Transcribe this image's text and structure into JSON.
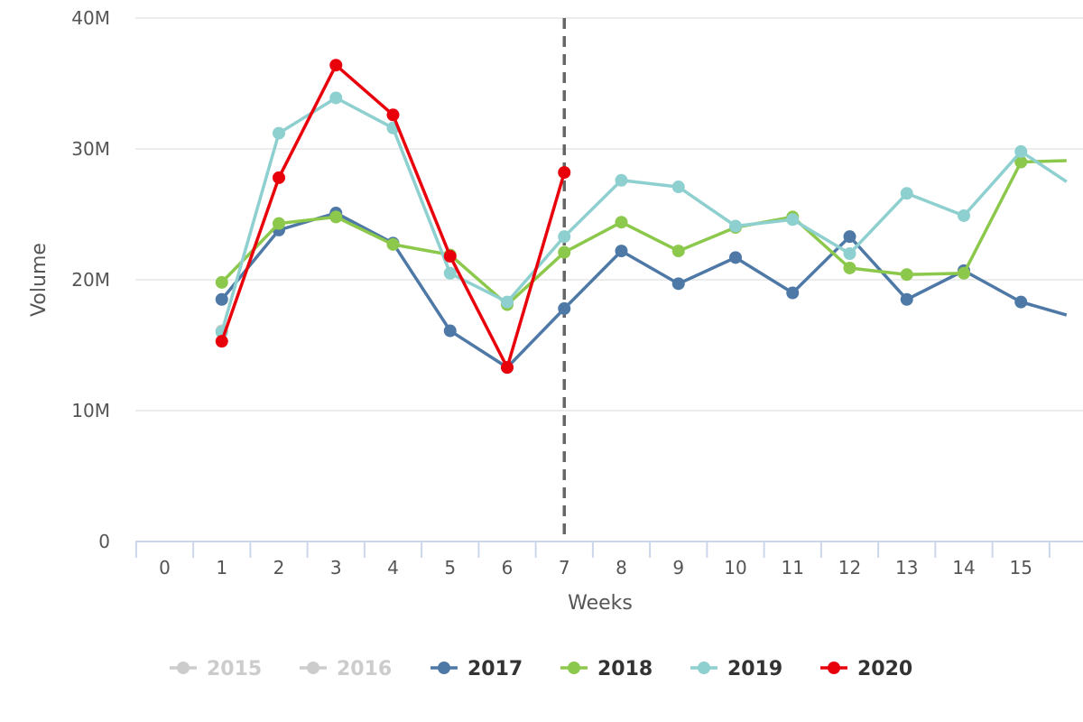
{
  "chart_data": {
    "type": "line",
    "xlabel": "Weeks",
    "ylabel": "Volume",
    "x": [
      0,
      1,
      2,
      3,
      4,
      5,
      6,
      7,
      8,
      9,
      10,
      11,
      12,
      13,
      14,
      15
    ],
    "xlim": [
      -0.5,
      15.8
    ],
    "ylim": [
      0,
      40
    ],
    "yticks": [
      {
        "value": 0,
        "label": "0"
      },
      {
        "value": 10,
        "label": "10M"
      },
      {
        "value": 20,
        "label": "20M"
      },
      {
        "value": 30,
        "label": "30M"
      },
      {
        "value": 40,
        "label": "40M"
      }
    ],
    "grid": "horizontal",
    "legend_position": "bottom",
    "reference_line": {
      "x": 7,
      "style": "dashed",
      "color": "#666666"
    },
    "series": [
      {
        "name": "2015",
        "color": "#cccccc",
        "visible": false,
        "points": []
      },
      {
        "name": "2016",
        "color": "#cccccc",
        "visible": false,
        "points": [
          [
            1,
            16.1
          ]
        ]
      },
      {
        "name": "2017",
        "color": "#4e79a7",
        "visible": true,
        "points": [
          [
            1,
            18.5
          ],
          [
            2,
            23.8
          ],
          [
            3,
            25.1
          ],
          [
            4,
            22.8
          ],
          [
            5,
            16.1
          ],
          [
            6,
            13.3
          ],
          [
            7,
            17.8
          ],
          [
            8,
            22.2
          ],
          [
            9,
            19.7
          ],
          [
            10,
            21.7
          ],
          [
            11,
            19.0
          ],
          [
            12,
            23.3
          ],
          [
            13,
            18.5
          ],
          [
            14,
            20.7
          ],
          [
            15,
            18.3
          ],
          [
            15.8,
            17.3
          ]
        ]
      },
      {
        "name": "2018",
        "color": "#8cc84b",
        "visible": true,
        "points": [
          [
            1,
            19.8
          ],
          [
            2,
            24.3
          ],
          [
            3,
            24.8
          ],
          [
            4,
            22.7
          ],
          [
            5,
            21.9
          ],
          [
            6,
            18.1
          ],
          [
            7,
            22.1
          ],
          [
            8,
            24.4
          ],
          [
            9,
            22.2
          ],
          [
            10,
            24.0
          ],
          [
            11,
            24.8
          ],
          [
            12,
            20.9
          ],
          [
            13,
            20.4
          ],
          [
            14,
            20.5
          ],
          [
            15,
            29.0
          ],
          [
            15.8,
            29.1
          ]
        ]
      },
      {
        "name": "2019",
        "color": "#8ecfcf",
        "visible": true,
        "points": [
          [
            1,
            16.0
          ],
          [
            2,
            31.2
          ],
          [
            3,
            33.9
          ],
          [
            4,
            31.6
          ],
          [
            5,
            20.5
          ],
          [
            6,
            18.3
          ],
          [
            7,
            23.3
          ],
          [
            8,
            27.6
          ],
          [
            9,
            27.1
          ],
          [
            10,
            24.1
          ],
          [
            11,
            24.6
          ],
          [
            12,
            22.0
          ],
          [
            13,
            26.6
          ],
          [
            14,
            24.9
          ],
          [
            15,
            29.8
          ],
          [
            15.8,
            27.5
          ]
        ]
      },
      {
        "name": "2020",
        "color": "#e8000b",
        "visible": true,
        "points": [
          [
            1,
            15.3
          ],
          [
            2,
            27.8
          ],
          [
            3,
            36.4
          ],
          [
            4,
            32.6
          ],
          [
            5,
            21.8
          ],
          [
            6,
            13.3
          ],
          [
            7,
            28.2
          ]
        ]
      }
    ]
  }
}
